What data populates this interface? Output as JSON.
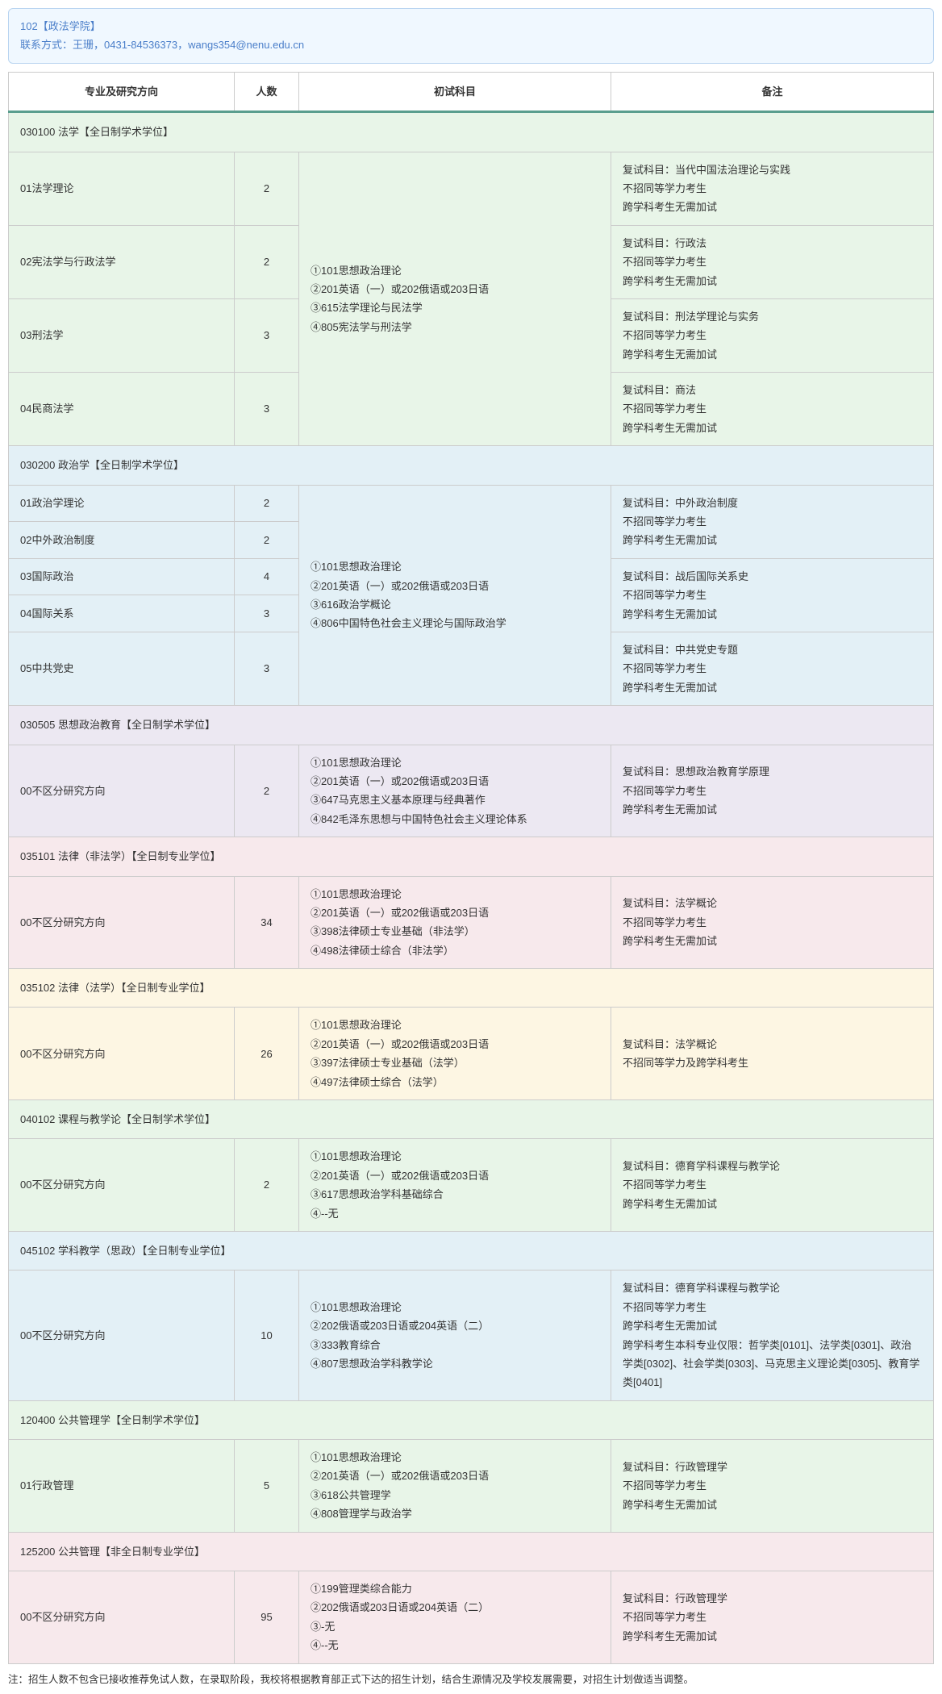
{
  "info": {
    "line1": "102【政法学院】",
    "contact_label": "联系方式：王珊，0431-84536373，",
    "email": "wangs354@nenu.edu.cn"
  },
  "headers": {
    "direction": "专业及研究方向",
    "num": "人数",
    "subjects": "初试科目",
    "notes": "备注"
  },
  "sections": [
    {
      "title": "030100 法学【全日制学术学位】",
      "bg": "bg-green",
      "subjects": "①101思想政治理论\n②201英语（一）或202俄语或203日语\n③615法学理论与民法学\n④805宪法学与刑法学",
      "subjects_rowspan": 4,
      "rows": [
        {
          "dir": "01法学理论",
          "num": "2",
          "note": "复试科目：当代中国法治理论与实践\n不招同等学力考生\n跨学科考生无需加试"
        },
        {
          "dir": "02宪法学与行政法学",
          "num": "2",
          "note": "复试科目：行政法\n不招同等学力考生\n跨学科考生无需加试"
        },
        {
          "dir": "03刑法学",
          "num": "3",
          "note": "复试科目：刑法学理论与实务\n不招同等学力考生\n跨学科考生无需加试"
        },
        {
          "dir": "04民商法学",
          "num": "3",
          "note": "复试科目：商法\n不招同等学力考生\n跨学科考生无需加试"
        }
      ]
    },
    {
      "title": "030200 政治学【全日制学术学位】",
      "bg": "bg-blue",
      "subjects": "①101思想政治理论\n②201英语（一）或202俄语或203日语\n③616政治学概论\n④806中国特色社会主义理论与国际政治学",
      "subjects_rowspan": 5,
      "rows": [
        {
          "dir": "01政治学理论",
          "num": "2",
          "note_rowspan": 2,
          "note": "复试科目：中外政治制度\n不招同等学力考生\n跨学科考生无需加试"
        },
        {
          "dir": "02中外政治制度",
          "num": "2"
        },
        {
          "dir": "03国际政治",
          "num": "4",
          "note_rowspan": 2,
          "note": "复试科目：战后国际关系史\n不招同等学力考生\n跨学科考生无需加试"
        },
        {
          "dir": "04国际关系",
          "num": "3"
        },
        {
          "dir": "05中共党史",
          "num": "3",
          "note": "复试科目：中共党史专题\n不招同等学力考生\n跨学科考生无需加试"
        }
      ]
    },
    {
      "title": "030505 思想政治教育【全日制学术学位】",
      "bg": "bg-purple",
      "rows": [
        {
          "dir": "00不区分研究方向",
          "num": "2",
          "subj": "①101思想政治理论\n②201英语（一）或202俄语或203日语\n③647马克思主义基本原理与经典著作\n④842毛泽东思想与中国特色社会主义理论体系",
          "note": "复试科目：思想政治教育学原理\n不招同等学力考生\n跨学科考生无需加试"
        }
      ]
    },
    {
      "title": "035101 法律（非法学）【全日制专业学位】",
      "bg": "bg-pink",
      "rows": [
        {
          "dir": "00不区分研究方向",
          "num": "34",
          "subj": "①101思想政治理论\n②201英语（一）或202俄语或203日语\n③398法律硕士专业基础（非法学）\n④498法律硕士综合（非法学）",
          "note": "复试科目：法学概论\n不招同等学力考生\n跨学科考生无需加试"
        }
      ]
    },
    {
      "title": "035102 法律（法学）【全日制专业学位】",
      "bg": "bg-yellow",
      "rows": [
        {
          "dir": "00不区分研究方向",
          "num": "26",
          "subj": "①101思想政治理论\n②201英语（一）或202俄语或203日语\n③397法律硕士专业基础（法学）\n④497法律硕士综合（法学）",
          "note": "复试科目：法学概论\n不招同等学力及跨学科考生"
        }
      ]
    },
    {
      "title": "040102 课程与教学论【全日制学术学位】",
      "bg": "bg-green",
      "rows": [
        {
          "dir": "00不区分研究方向",
          "num": "2",
          "subj": "①101思想政治理论\n②201英语（一）或202俄语或203日语\n③617思想政治学科基础综合\n④--无",
          "note": "复试科目：德育学科课程与教学论\n不招同等学力考生\n跨学科考生无需加试"
        }
      ]
    },
    {
      "title": "045102 学科教学（思政）【全日制专业学位】",
      "bg": "bg-blue",
      "rows": [
        {
          "dir": "00不区分研究方向",
          "num": "10",
          "subj": "①101思想政治理论\n②202俄语或203日语或204英语（二）\n③333教育综合\n④807思想政治学科教学论",
          "note": "复试科目：德育学科课程与教学论\n不招同等学力考生\n跨学科考生无需加试\n跨学科考生本科专业仅限：哲学类[0101]、法学类[0301]、政治学类[0302]、社会学类[0303]、马克思主义理论类[0305]、教育学类[0401]"
        }
      ]
    },
    {
      "title": "120400 公共管理学【全日制学术学位】",
      "bg": "bg-green",
      "rows": [
        {
          "dir": "01行政管理",
          "num": "5",
          "subj": "①101思想政治理论\n②201英语（一）或202俄语或203日语\n③618公共管理学\n④808管理学与政治学",
          "note": "复试科目：行政管理学\n不招同等学力考生\n跨学科考生无需加试"
        }
      ]
    },
    {
      "title": "125200 公共管理【非全日制专业学位】",
      "bg": "bg-pink",
      "rows": [
        {
          "dir": "00不区分研究方向",
          "num": "95",
          "subj": "①199管理类综合能力\n②202俄语或203日语或204英语（二）\n③-无\n④--无",
          "note": "复试科目：行政管理学\n不招同等学力考生\n跨学科考生无需加试"
        }
      ]
    }
  ],
  "footnote": "注：招生人数不包含已接收推荐免试人数，在录取阶段，我校将根据教育部正式下达的招生计划，结合生源情况及学校发展需要，对招生计划做适当调整。"
}
